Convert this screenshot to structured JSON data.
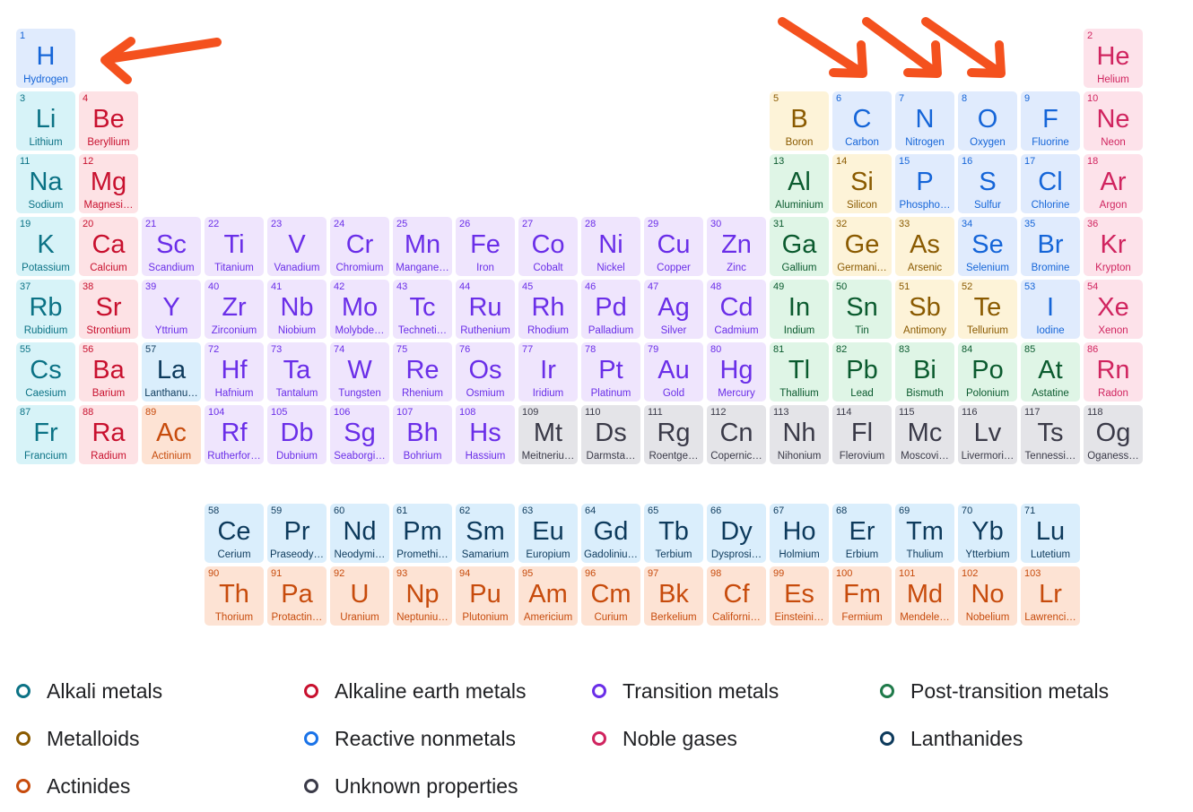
{
  "categories": {
    "alkali": {
      "label": "Alkali metals",
      "color": "#0b7285"
    },
    "alkaline": {
      "label": "Alkaline earth metals",
      "color": "#c8102e"
    },
    "transition": {
      "label": "Transition metals",
      "color": "#6a2ee8"
    },
    "post": {
      "label": "Post-transition metals",
      "color": "#1f7a4a"
    },
    "metalloid": {
      "label": "Metalloids",
      "color": "#8a5a00"
    },
    "nonmetal": {
      "label": "Reactive nonmetals",
      "color": "#1a73e8"
    },
    "noble": {
      "label": "Noble gases",
      "color": "#d0245f"
    },
    "lanth": {
      "label": "Lanthanides",
      "color": "#0d3a5c"
    },
    "actin": {
      "label": "Actinides",
      "color": "#c74b0c"
    },
    "unknown": {
      "label": "Unknown properties",
      "color": "#3a3a48"
    }
  },
  "legend_order": [
    "alkali",
    "alkaline",
    "transition",
    "post",
    "metalloid",
    "nonmetal",
    "noble",
    "lanth",
    "actin",
    "unknown"
  ],
  "arrow_color": "#f4511e",
  "elements": [
    {
      "n": 1,
      "s": "H",
      "name": "Hydrogen",
      "cat": "nonmetal",
      "r": 1,
      "c": 1
    },
    {
      "n": 2,
      "s": "He",
      "name": "Helium",
      "cat": "noble",
      "r": 1,
      "c": 18
    },
    {
      "n": 3,
      "s": "Li",
      "name": "Lithium",
      "cat": "alkali",
      "r": 2,
      "c": 1
    },
    {
      "n": 4,
      "s": "Be",
      "name": "Beryllium",
      "cat": "alkaline",
      "r": 2,
      "c": 2
    },
    {
      "n": 5,
      "s": "B",
      "name": "Boron",
      "cat": "metalloid",
      "r": 2,
      "c": 13
    },
    {
      "n": 6,
      "s": "C",
      "name": "Carbon",
      "cat": "nonmetal",
      "r": 2,
      "c": 14
    },
    {
      "n": 7,
      "s": "N",
      "name": "Nitrogen",
      "cat": "nonmetal",
      "r": 2,
      "c": 15
    },
    {
      "n": 8,
      "s": "O",
      "name": "Oxygen",
      "cat": "nonmetal",
      "r": 2,
      "c": 16
    },
    {
      "n": 9,
      "s": "F",
      "name": "Fluorine",
      "cat": "nonmetal",
      "r": 2,
      "c": 17
    },
    {
      "n": 10,
      "s": "Ne",
      "name": "Neon",
      "cat": "noble",
      "r": 2,
      "c": 18
    },
    {
      "n": 11,
      "s": "Na",
      "name": "Sodium",
      "cat": "alkali",
      "r": 3,
      "c": 1
    },
    {
      "n": 12,
      "s": "Mg",
      "name": "Magnesi…",
      "cat": "alkaline",
      "r": 3,
      "c": 2
    },
    {
      "n": 13,
      "s": "Al",
      "name": "Aluminium",
      "cat": "post",
      "r": 3,
      "c": 13
    },
    {
      "n": 14,
      "s": "Si",
      "name": "Silicon",
      "cat": "metalloid",
      "r": 3,
      "c": 14
    },
    {
      "n": 15,
      "s": "P",
      "name": "Phospho…",
      "cat": "nonmetal",
      "r": 3,
      "c": 15
    },
    {
      "n": 16,
      "s": "S",
      "name": "Sulfur",
      "cat": "nonmetal",
      "r": 3,
      "c": 16
    },
    {
      "n": 17,
      "s": "Cl",
      "name": "Chlorine",
      "cat": "nonmetal",
      "r": 3,
      "c": 17
    },
    {
      "n": 18,
      "s": "Ar",
      "name": "Argon",
      "cat": "noble",
      "r": 3,
      "c": 18
    },
    {
      "n": 19,
      "s": "K",
      "name": "Potassium",
      "cat": "alkali",
      "r": 4,
      "c": 1
    },
    {
      "n": 20,
      "s": "Ca",
      "name": "Calcium",
      "cat": "alkaline",
      "r": 4,
      "c": 2
    },
    {
      "n": 21,
      "s": "Sc",
      "name": "Scandium",
      "cat": "transition",
      "r": 4,
      "c": 3
    },
    {
      "n": 22,
      "s": "Ti",
      "name": "Titanium",
      "cat": "transition",
      "r": 4,
      "c": 4
    },
    {
      "n": 23,
      "s": "V",
      "name": "Vanadium",
      "cat": "transition",
      "r": 4,
      "c": 5
    },
    {
      "n": 24,
      "s": "Cr",
      "name": "Chromium",
      "cat": "transition",
      "r": 4,
      "c": 6
    },
    {
      "n": 25,
      "s": "Mn",
      "name": "Mangane…",
      "cat": "transition",
      "r": 4,
      "c": 7
    },
    {
      "n": 26,
      "s": "Fe",
      "name": "Iron",
      "cat": "transition",
      "r": 4,
      "c": 8
    },
    {
      "n": 27,
      "s": "Co",
      "name": "Cobalt",
      "cat": "transition",
      "r": 4,
      "c": 9
    },
    {
      "n": 28,
      "s": "Ni",
      "name": "Nickel",
      "cat": "transition",
      "r": 4,
      "c": 10
    },
    {
      "n": 29,
      "s": "Cu",
      "name": "Copper",
      "cat": "transition",
      "r": 4,
      "c": 11
    },
    {
      "n": 30,
      "s": "Zn",
      "name": "Zinc",
      "cat": "transition",
      "r": 4,
      "c": 12
    },
    {
      "n": 31,
      "s": "Ga",
      "name": "Gallium",
      "cat": "post",
      "r": 4,
      "c": 13
    },
    {
      "n": 32,
      "s": "Ge",
      "name": "Germani…",
      "cat": "metalloid",
      "r": 4,
      "c": 14
    },
    {
      "n": 33,
      "s": "As",
      "name": "Arsenic",
      "cat": "metalloid",
      "r": 4,
      "c": 15
    },
    {
      "n": 34,
      "s": "Se",
      "name": "Selenium",
      "cat": "nonmetal",
      "r": 4,
      "c": 16
    },
    {
      "n": 35,
      "s": "Br",
      "name": "Bromine",
      "cat": "nonmetal",
      "r": 4,
      "c": 17
    },
    {
      "n": 36,
      "s": "Kr",
      "name": "Krypton",
      "cat": "noble",
      "r": 4,
      "c": 18
    },
    {
      "n": 37,
      "s": "Rb",
      "name": "Rubidium",
      "cat": "alkali",
      "r": 5,
      "c": 1
    },
    {
      "n": 38,
      "s": "Sr",
      "name": "Strontium",
      "cat": "alkaline",
      "r": 5,
      "c": 2
    },
    {
      "n": 39,
      "s": "Y",
      "name": "Yttrium",
      "cat": "transition",
      "r": 5,
      "c": 3
    },
    {
      "n": 40,
      "s": "Zr",
      "name": "Zirconium",
      "cat": "transition",
      "r": 5,
      "c": 4
    },
    {
      "n": 41,
      "s": "Nb",
      "name": "Niobium",
      "cat": "transition",
      "r": 5,
      "c": 5
    },
    {
      "n": 42,
      "s": "Mo",
      "name": "Molybde…",
      "cat": "transition",
      "r": 5,
      "c": 6
    },
    {
      "n": 43,
      "s": "Tc",
      "name": "Techneti…",
      "cat": "transition",
      "r": 5,
      "c": 7
    },
    {
      "n": 44,
      "s": "Ru",
      "name": "Ruthenium",
      "cat": "transition",
      "r": 5,
      "c": 8
    },
    {
      "n": 45,
      "s": "Rh",
      "name": "Rhodium",
      "cat": "transition",
      "r": 5,
      "c": 9
    },
    {
      "n": 46,
      "s": "Pd",
      "name": "Palladium",
      "cat": "transition",
      "r": 5,
      "c": 10
    },
    {
      "n": 47,
      "s": "Ag",
      "name": "Silver",
      "cat": "transition",
      "r": 5,
      "c": 11
    },
    {
      "n": 48,
      "s": "Cd",
      "name": "Cadmium",
      "cat": "transition",
      "r": 5,
      "c": 12
    },
    {
      "n": 49,
      "s": "In",
      "name": "Indium",
      "cat": "post",
      "r": 5,
      "c": 13
    },
    {
      "n": 50,
      "s": "Sn",
      "name": "Tin",
      "cat": "post",
      "r": 5,
      "c": 14
    },
    {
      "n": 51,
      "s": "Sb",
      "name": "Antimony",
      "cat": "metalloid",
      "r": 5,
      "c": 15
    },
    {
      "n": 52,
      "s": "Te",
      "name": "Tellurium",
      "cat": "metalloid",
      "r": 5,
      "c": 16
    },
    {
      "n": 53,
      "s": "I",
      "name": "Iodine",
      "cat": "nonmetal",
      "r": 5,
      "c": 17
    },
    {
      "n": 54,
      "s": "Xe",
      "name": "Xenon",
      "cat": "noble",
      "r": 5,
      "c": 18
    },
    {
      "n": 55,
      "s": "Cs",
      "name": "Caesium",
      "cat": "alkali",
      "r": 6,
      "c": 1
    },
    {
      "n": 56,
      "s": "Ba",
      "name": "Barium",
      "cat": "alkaline",
      "r": 6,
      "c": 2
    },
    {
      "n": 57,
      "s": "La",
      "name": "Lanthanu…",
      "cat": "lanth",
      "r": 6,
      "c": 3
    },
    {
      "n": 72,
      "s": "Hf",
      "name": "Hafnium",
      "cat": "transition",
      "r": 6,
      "c": 4
    },
    {
      "n": 73,
      "s": "Ta",
      "name": "Tantalum",
      "cat": "transition",
      "r": 6,
      "c": 5
    },
    {
      "n": 74,
      "s": "W",
      "name": "Tungsten",
      "cat": "transition",
      "r": 6,
      "c": 6
    },
    {
      "n": 75,
      "s": "Re",
      "name": "Rhenium",
      "cat": "transition",
      "r": 6,
      "c": 7
    },
    {
      "n": 76,
      "s": "Os",
      "name": "Osmium",
      "cat": "transition",
      "r": 6,
      "c": 8
    },
    {
      "n": 77,
      "s": "Ir",
      "name": "Iridium",
      "cat": "transition",
      "r": 6,
      "c": 9
    },
    {
      "n": 78,
      "s": "Pt",
      "name": "Platinum",
      "cat": "transition",
      "r": 6,
      "c": 10
    },
    {
      "n": 79,
      "s": "Au",
      "name": "Gold",
      "cat": "transition",
      "r": 6,
      "c": 11
    },
    {
      "n": 80,
      "s": "Hg",
      "name": "Mercury",
      "cat": "transition",
      "r": 6,
      "c": 12
    },
    {
      "n": 81,
      "s": "Tl",
      "name": "Thallium",
      "cat": "post",
      "r": 6,
      "c": 13
    },
    {
      "n": 82,
      "s": "Pb",
      "name": "Lead",
      "cat": "post",
      "r": 6,
      "c": 14
    },
    {
      "n": 83,
      "s": "Bi",
      "name": "Bismuth",
      "cat": "post",
      "r": 6,
      "c": 15
    },
    {
      "n": 84,
      "s": "Po",
      "name": "Polonium",
      "cat": "post",
      "r": 6,
      "c": 16
    },
    {
      "n": 85,
      "s": "At",
      "name": "Astatine",
      "cat": "post",
      "r": 6,
      "c": 17
    },
    {
      "n": 86,
      "s": "Rn",
      "name": "Radon",
      "cat": "noble",
      "r": 6,
      "c": 18
    },
    {
      "n": 87,
      "s": "Fr",
      "name": "Francium",
      "cat": "alkali",
      "r": 7,
      "c": 1
    },
    {
      "n": 88,
      "s": "Ra",
      "name": "Radium",
      "cat": "alkaline",
      "r": 7,
      "c": 2
    },
    {
      "n": 89,
      "s": "Ac",
      "name": "Actinium",
      "cat": "actin",
      "r": 7,
      "c": 3
    },
    {
      "n": 104,
      "s": "Rf",
      "name": "Rutherfor…",
      "cat": "transition",
      "r": 7,
      "c": 4
    },
    {
      "n": 105,
      "s": "Db",
      "name": "Dubnium",
      "cat": "transition",
      "r": 7,
      "c": 5
    },
    {
      "n": 106,
      "s": "Sg",
      "name": "Seaborgi…",
      "cat": "transition",
      "r": 7,
      "c": 6
    },
    {
      "n": 107,
      "s": "Bh",
      "name": "Bohrium",
      "cat": "transition",
      "r": 7,
      "c": 7
    },
    {
      "n": 108,
      "s": "Hs",
      "name": "Hassium",
      "cat": "transition",
      "r": 7,
      "c": 8
    },
    {
      "n": 109,
      "s": "Mt",
      "name": "Meitneriu…",
      "cat": "unknown",
      "r": 7,
      "c": 9
    },
    {
      "n": 110,
      "s": "Ds",
      "name": "Darmsta…",
      "cat": "unknown",
      "r": 7,
      "c": 10
    },
    {
      "n": 111,
      "s": "Rg",
      "name": "Roentge…",
      "cat": "unknown",
      "r": 7,
      "c": 11
    },
    {
      "n": 112,
      "s": "Cn",
      "name": "Copernic…",
      "cat": "unknown",
      "r": 7,
      "c": 12
    },
    {
      "n": 113,
      "s": "Nh",
      "name": "Nihonium",
      "cat": "unknown",
      "r": 7,
      "c": 13
    },
    {
      "n": 114,
      "s": "Fl",
      "name": "Flerovium",
      "cat": "unknown",
      "r": 7,
      "c": 14
    },
    {
      "n": 115,
      "s": "Mc",
      "name": "Moscovi…",
      "cat": "unknown",
      "r": 7,
      "c": 15
    },
    {
      "n": 116,
      "s": "Lv",
      "name": "Livermori…",
      "cat": "unknown",
      "r": 7,
      "c": 16
    },
    {
      "n": 117,
      "s": "Ts",
      "name": "Tennessi…",
      "cat": "unknown",
      "r": 7,
      "c": 17
    },
    {
      "n": 118,
      "s": "Og",
      "name": "Oganess…",
      "cat": "unknown",
      "r": 7,
      "c": 18
    },
    {
      "n": 58,
      "s": "Ce",
      "name": "Cerium",
      "cat": "lanth",
      "r": 9,
      "c": 4
    },
    {
      "n": 59,
      "s": "Pr",
      "name": "Praseody…",
      "cat": "lanth",
      "r": 9,
      "c": 5
    },
    {
      "n": 60,
      "s": "Nd",
      "name": "Neodymi…",
      "cat": "lanth",
      "r": 9,
      "c": 6
    },
    {
      "n": 61,
      "s": "Pm",
      "name": "Promethi…",
      "cat": "lanth",
      "r": 9,
      "c": 7
    },
    {
      "n": 62,
      "s": "Sm",
      "name": "Samarium",
      "cat": "lanth",
      "r": 9,
      "c": 8
    },
    {
      "n": 63,
      "s": "Eu",
      "name": "Europium",
      "cat": "lanth",
      "r": 9,
      "c": 9
    },
    {
      "n": 64,
      "s": "Gd",
      "name": "Gadoliniu…",
      "cat": "lanth",
      "r": 9,
      "c": 10
    },
    {
      "n": 65,
      "s": "Tb",
      "name": "Terbium",
      "cat": "lanth",
      "r": 9,
      "c": 11
    },
    {
      "n": 66,
      "s": "Dy",
      "name": "Dysprosi…",
      "cat": "lanth",
      "r": 9,
      "c": 12
    },
    {
      "n": 67,
      "s": "Ho",
      "name": "Holmium",
      "cat": "lanth",
      "r": 9,
      "c": 13
    },
    {
      "n": 68,
      "s": "Er",
      "name": "Erbium",
      "cat": "lanth",
      "r": 9,
      "c": 14
    },
    {
      "n": 69,
      "s": "Tm",
      "name": "Thulium",
      "cat": "lanth",
      "r": 9,
      "c": 15
    },
    {
      "n": 70,
      "s": "Yb",
      "name": "Ytterbium",
      "cat": "lanth",
      "r": 9,
      "c": 16
    },
    {
      "n": 71,
      "s": "Lu",
      "name": "Lutetium",
      "cat": "lanth",
      "r": 9,
      "c": 17
    },
    {
      "n": 90,
      "s": "Th",
      "name": "Thorium",
      "cat": "actin",
      "r": 10,
      "c": 4
    },
    {
      "n": 91,
      "s": "Pa",
      "name": "Protactin…",
      "cat": "actin",
      "r": 10,
      "c": 5
    },
    {
      "n": 92,
      "s": "U",
      "name": "Uranium",
      "cat": "actin",
      "r": 10,
      "c": 6
    },
    {
      "n": 93,
      "s": "Np",
      "name": "Neptuniu…",
      "cat": "actin",
      "r": 10,
      "c": 7
    },
    {
      "n": 94,
      "s": "Pu",
      "name": "Plutonium",
      "cat": "actin",
      "r": 10,
      "c": 8
    },
    {
      "n": 95,
      "s": "Am",
      "name": "Americium",
      "cat": "actin",
      "r": 10,
      "c": 9
    },
    {
      "n": 96,
      "s": "Cm",
      "name": "Curium",
      "cat": "actin",
      "r": 10,
      "c": 10
    },
    {
      "n": 97,
      "s": "Bk",
      "name": "Berkelium",
      "cat": "actin",
      "r": 10,
      "c": 11
    },
    {
      "n": 98,
      "s": "Cf",
      "name": "Californi…",
      "cat": "actin",
      "r": 10,
      "c": 12
    },
    {
      "n": 99,
      "s": "Es",
      "name": "Einsteini…",
      "cat": "actin",
      "r": 10,
      "c": 13
    },
    {
      "n": 100,
      "s": "Fm",
      "name": "Fermium",
      "cat": "actin",
      "r": 10,
      "c": 14
    },
    {
      "n": 101,
      "s": "Md",
      "name": "Mendele…",
      "cat": "actin",
      "r": 10,
      "c": 15
    },
    {
      "n": 102,
      "s": "No",
      "name": "Nobelium",
      "cat": "actin",
      "r": 10,
      "c": 16
    },
    {
      "n": 103,
      "s": "Lr",
      "name": "Lawrenci…",
      "cat": "actin",
      "r": 10,
      "c": 17
    }
  ]
}
